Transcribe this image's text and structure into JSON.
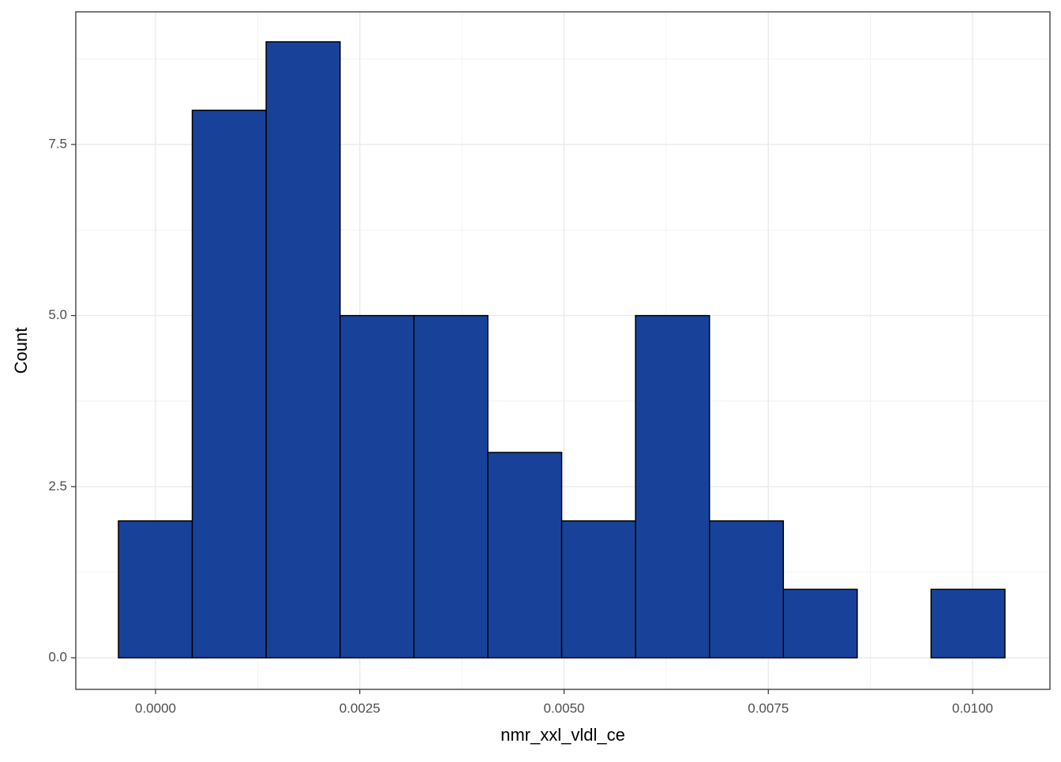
{
  "chart_data": {
    "type": "histogram",
    "x_label": "nmr_xxl_vldl_ce",
    "y_label": "Count",
    "bins": [
      -0.000454,
      0.00045,
      0.001354,
      0.002259,
      0.003163,
      0.004067,
      0.004971,
      0.005875,
      0.00678,
      0.007684,
      0.008588,
      0.009492,
      0.010396
    ],
    "values": [
      2,
      8,
      9,
      5,
      5,
      3,
      2,
      5,
      2,
      1,
      0,
      1
    ],
    "color": "#18429a",
    "xlim": [
      -0.000976,
      0.010947
    ],
    "xticks": [
      {
        "value": 0,
        "label": "0.0000"
      },
      {
        "value": 0.0025,
        "label": "0.0025"
      },
      {
        "value": 0.005,
        "label": "0.0050"
      },
      {
        "value": 0.0075,
        "label": "0.0075"
      },
      {
        "value": 0.01,
        "label": "0.0100"
      }
    ],
    "ylim": [
      -0.4615,
      9.438
    ],
    "yticks": [
      {
        "value": 0,
        "label": "0.0"
      },
      2.5,
      {
        "value": 5,
        "label": "5.0"
      },
      7.5
    ],
    "grid": true
  }
}
